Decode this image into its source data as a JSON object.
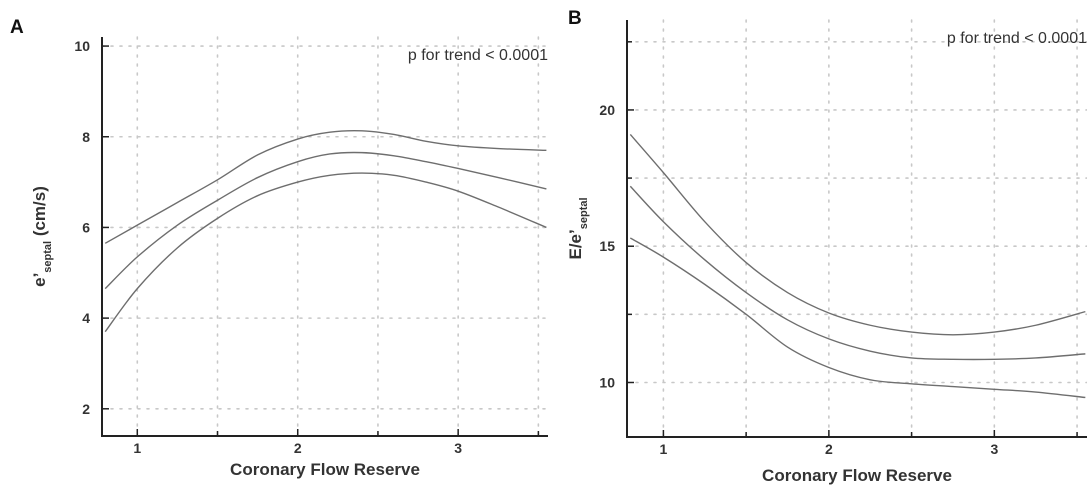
{
  "chart_data": [
    {
      "panel": "A",
      "type": "line",
      "xlabel": "Coronary Flow Reserve",
      "ylabel_main": "e’",
      "ylabel_sub": "septal",
      "ylabel_unit": " (cm/s)",
      "annotation": "p for trend < 0.0001",
      "xlim": [
        0.78,
        3.56
      ],
      "ylim": [
        1.4,
        10.2
      ],
      "xticks": [
        1,
        2,
        3
      ],
      "xticks_minor": [
        1.5,
        2.5,
        3.5
      ],
      "yticks": [
        2,
        4,
        6,
        8,
        10
      ],
      "grid": true,
      "series": [
        {
          "x": [
            0.8,
            1.0,
            1.25,
            1.5,
            1.75,
            2.0,
            2.2,
            2.4,
            2.6,
            2.8,
            3.0,
            3.25,
            3.55
          ],
          "values": [
            5.65,
            6.05,
            6.55,
            7.05,
            7.6,
            7.95,
            8.1,
            8.13,
            8.05,
            7.9,
            7.8,
            7.74,
            7.7
          ]
        },
        {
          "x": [
            0.8,
            1.0,
            1.25,
            1.5,
            1.75,
            2.0,
            2.2,
            2.4,
            2.6,
            2.8,
            3.0,
            3.25,
            3.55
          ],
          "values": [
            4.65,
            5.35,
            6.05,
            6.6,
            7.1,
            7.45,
            7.62,
            7.65,
            7.58,
            7.45,
            7.3,
            7.1,
            6.85
          ]
        },
        {
          "x": [
            0.8,
            1.0,
            1.25,
            1.5,
            1.75,
            2.0,
            2.2,
            2.4,
            2.6,
            2.8,
            3.0,
            3.25,
            3.55
          ],
          "values": [
            3.7,
            4.65,
            5.55,
            6.2,
            6.7,
            7.0,
            7.15,
            7.2,
            7.15,
            7.0,
            6.8,
            6.45,
            6.0
          ]
        }
      ]
    },
    {
      "panel": "B",
      "type": "line",
      "xlabel": "Coronary Flow Reserve",
      "ylabel_main": "E/e’",
      "ylabel_sub": "septal",
      "ylabel_unit": "",
      "annotation": "p for trend < 0.0001",
      "xlim": [
        0.78,
        3.56
      ],
      "ylim": [
        8.0,
        23.3
      ],
      "xticks": [
        1,
        2,
        3
      ],
      "xticks_minor": [
        1.5,
        2.5,
        3.5
      ],
      "yticks": [
        10,
        15,
        20
      ],
      "yticks_minor": [
        12.5,
        17.5,
        22.5
      ],
      "grid": true,
      "series": [
        {
          "x": [
            0.8,
            1.0,
            1.25,
            1.5,
            1.75,
            2.0,
            2.25,
            2.5,
            2.75,
            3.0,
            3.25,
            3.55
          ],
          "values": [
            19.1,
            17.7,
            15.9,
            14.4,
            13.3,
            12.55,
            12.1,
            11.85,
            11.75,
            11.85,
            12.1,
            12.6
          ]
        },
        {
          "x": [
            0.8,
            1.0,
            1.25,
            1.5,
            1.75,
            2.0,
            2.25,
            2.5,
            2.75,
            3.0,
            3.25,
            3.55
          ],
          "values": [
            17.2,
            15.9,
            14.5,
            13.3,
            12.3,
            11.6,
            11.15,
            10.9,
            10.85,
            10.85,
            10.9,
            11.05
          ]
        },
        {
          "x": [
            0.8,
            1.0,
            1.25,
            1.5,
            1.75,
            2.0,
            2.25,
            2.5,
            2.75,
            3.0,
            3.25,
            3.55
          ],
          "values": [
            15.3,
            14.6,
            13.6,
            12.5,
            11.3,
            10.55,
            10.1,
            9.95,
            9.85,
            9.75,
            9.65,
            9.45
          ]
        }
      ]
    }
  ]
}
